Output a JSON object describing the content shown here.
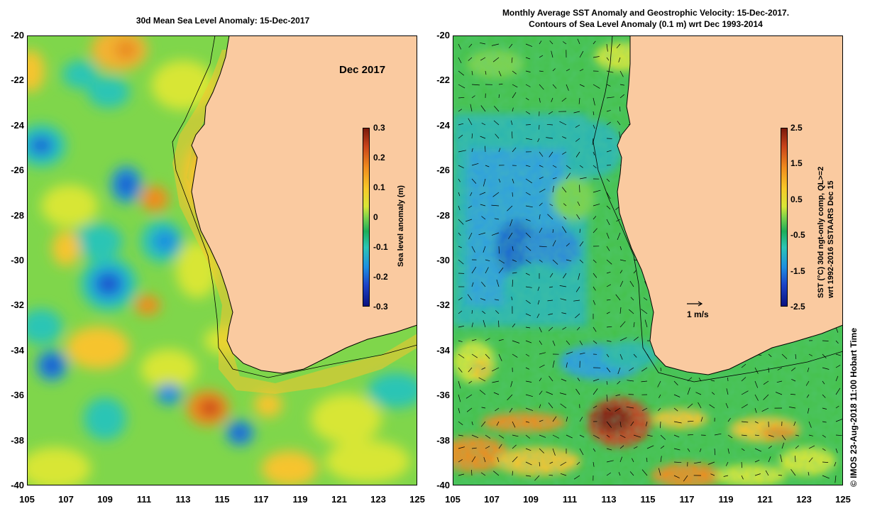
{
  "left_panel": {
    "title": "30d Mean Sea Level Anomaly: 15-Dec-2017",
    "month_label": "Dec 2017",
    "colorbar": {
      "label": "Sea level anomaly (m)",
      "ticks": [
        "0.3",
        "0.2",
        "0.1",
        "0",
        "-0.1",
        "-0.2",
        "-0.3"
      ]
    }
  },
  "right_panel": {
    "title_line1": "Monthly Average SST Anomaly  and Geostrophic Velocity: 15-Dec-2017.",
    "title_line2": "Contours of Sea Level Anomaly (0.1 m) wrt Dec 1993-2014",
    "scale_label": "1 m/s",
    "colorbar": {
      "label_line1": "SST (°C) 30d ngt-only comp, QL>=2",
      "label_line2": "wrt 1992-2016 SSTAARS Dec 15",
      "ticks": [
        "2.5",
        "1.5",
        "0.5",
        "-0.5",
        "-1.5",
        "-2.5"
      ]
    }
  },
  "axes": {
    "y_ticks": [
      "-20",
      "-22",
      "-24",
      "-26",
      "-28",
      "-30",
      "-32",
      "-34",
      "-36",
      "-38",
      "-40"
    ],
    "x_ticks": [
      "105",
      "107",
      "109",
      "111",
      "113",
      "115",
      "117",
      "119",
      "121",
      "123",
      "125"
    ],
    "lat_range": [
      -40,
      -20
    ],
    "lon_range": [
      105,
      125
    ]
  },
  "copyright": "© IMOS 23-Aug-2018 11:00 Hobart Time",
  "colors": {
    "land": "#facaa0",
    "ocean_base": "#7fd64b",
    "sla_colormap": [
      "#0a1280",
      "#1d44c8",
      "#1e8fe0",
      "#2bc5b5",
      "#1eae5a",
      "#7fd34a",
      "#d8e636",
      "#f7c928",
      "#f08c1e",
      "#c8431a",
      "#7a1a0a"
    ]
  }
}
